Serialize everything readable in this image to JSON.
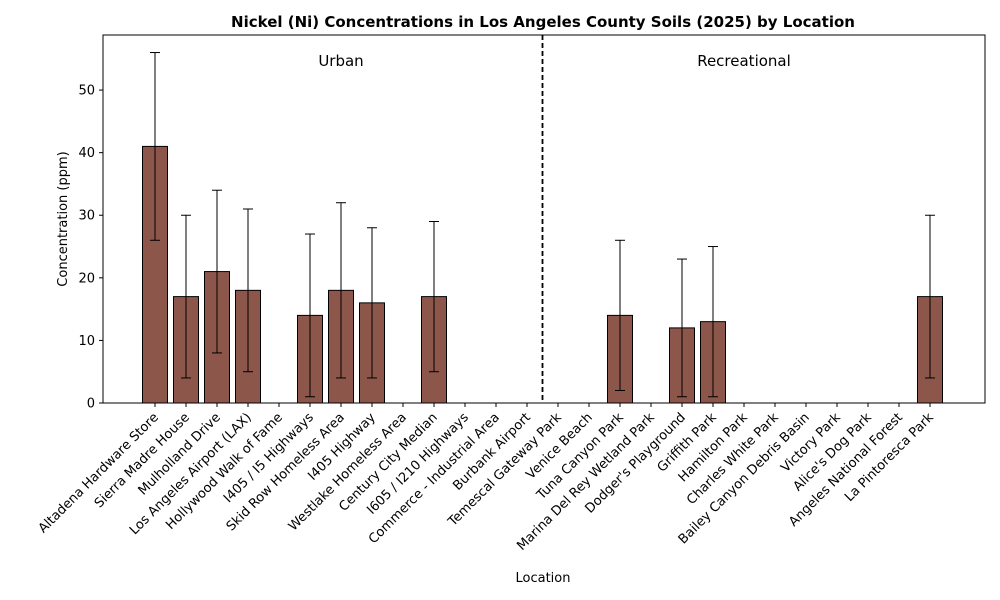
{
  "chart_data": {
    "type": "bar",
    "title": "Nickel (Ni) Concentrations in Los Angeles County Soils (2025) by Location",
    "xlabel": "Location",
    "ylabel": "Concentration (ppm)",
    "ylim": [
      0,
      58.8
    ],
    "yticks": [
      0,
      10,
      20,
      30,
      40,
      50
    ],
    "grid": false,
    "bar_color": "#8c564b",
    "edge_color": "#000000",
    "error_bar_color": "#000000",
    "categories": [
      "Altadena Hardware Store",
      "Sierra Madre House",
      "Mulholland Drive",
      "Los Angeles Airport (LAX)",
      "Hollywood Walk of Fame",
      "I405 / I5 Highways",
      "Skid Row Homeless Area",
      "I405 Highway",
      "Westlake Homeless Area",
      "Century City Median",
      "I605 / I210 Highways",
      "Commerce - Industrial Area",
      "Burbank Airport",
      "Temescal Gateway Park",
      "Venice Beach",
      "Tuna Canyon Park",
      "Marina Del Rey Wetland Park",
      "Dodger's Playground",
      "Griffith Park",
      "Hamilton Park",
      "Charles White Park",
      "Bailey Canyon Debris Basin",
      "Victory Park",
      "Alice's Dog Park",
      "Angeles National Forest",
      "La Pintoresca Park"
    ],
    "values": [
      41,
      17,
      21,
      18,
      null,
      14,
      18,
      16,
      null,
      17,
      null,
      null,
      null,
      null,
      null,
      14,
      null,
      12,
      13,
      null,
      null,
      null,
      null,
      null,
      null,
      17
    ],
    "errors": [
      15,
      13,
      13,
      13,
      null,
      13,
      14,
      12,
      null,
      12,
      null,
      null,
      null,
      null,
      null,
      12,
      null,
      11,
      12,
      null,
      null,
      null,
      null,
      null,
      null,
      13
    ],
    "regions": [
      {
        "label": "Urban",
        "start_index": 0,
        "end_index": 12
      },
      {
        "label": "Recreational",
        "start_index": 13,
        "end_index": 25
      }
    ],
    "divider_after_index": 12.5
  }
}
